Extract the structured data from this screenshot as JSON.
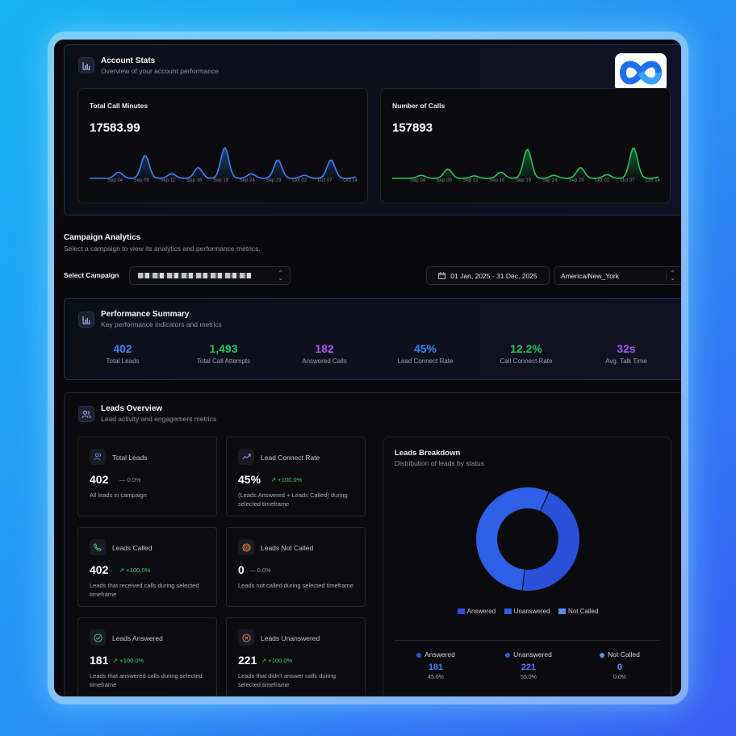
{
  "account_stats": {
    "title": "Account Stats",
    "subtitle": "Overview of your account performance",
    "call_minutes": {
      "title": "Total Call Minutes",
      "value": "17583.99",
      "color": "#3b82f6",
      "ticks": [
        "Sep 04",
        "Sep 09",
        "Sep 12",
        "Sep 16",
        "Sep 19",
        "Sep 24",
        "Sep 29",
        "Oct 02",
        "Oct 07",
        "Oct 14"
      ]
    },
    "number_of_calls": {
      "title": "Number of Calls",
      "value": "157893",
      "color": "#22c55e",
      "ticks": [
        "Sep 04",
        "Sep 09",
        "Sep 12",
        "Sep 16",
        "Sep 19",
        "Sep 24",
        "Sep 29",
        "Oct 02",
        "Oct 07",
        "Oct 14"
      ]
    }
  },
  "campaign_analytics": {
    "title": "Campaign Analytics",
    "subtitle": "Select a campaign to view its analytics and performance metrics.",
    "select_label": "Select Campaign",
    "date_range": "01 Jan, 2025 - 31 Dec, 2025",
    "timezone": "America/New_York"
  },
  "performance_summary": {
    "title": "Performance Summary",
    "subtitle": "Key performance indicators and metrics",
    "metrics": [
      {
        "value": "402",
        "label": "Total Leads",
        "color": "#3b82f6"
      },
      {
        "value": "1,493",
        "label": "Total Call Attempts",
        "color": "#22c55e"
      },
      {
        "value": "182",
        "label": "Answered Calls",
        "color": "#a855f7"
      },
      {
        "value": "45%",
        "label": "Lead Connect Rate",
        "color": "#3b82f6"
      },
      {
        "value": "12.2%",
        "label": "Call Connect Rate",
        "color": "#22c55e"
      },
      {
        "value": "32s",
        "label": "Avg. Talk Time",
        "color": "#a855f7"
      }
    ]
  },
  "leads_overview": {
    "title": "Leads Overview",
    "subtitle": "Lead activity and engagement metrics",
    "cards": [
      {
        "title": "Total Leads",
        "value": "402",
        "change": "0.0%",
        "trend": "flat",
        "desc": "All leads in campaign"
      },
      {
        "title": "Lead Connect Rate",
        "value": "45%",
        "change": "+100.0%",
        "trend": "up",
        "desc": "(Leads Answered + Leads Called) during selected timeframe"
      },
      {
        "title": "Leads Called",
        "value": "402",
        "change": "+100.0%",
        "trend": "up",
        "desc": "Leads that received calls during selected timeframe"
      },
      {
        "title": "Leads Not Called",
        "value": "0",
        "change": "0.0%",
        "trend": "flat",
        "desc": "Leads not called during selected timeframe"
      },
      {
        "title": "Leads Answered",
        "value": "181",
        "change": "+100.0%",
        "trend": "up",
        "desc": "Leads that answered calls during selected timeframe"
      },
      {
        "title": "Leads Unanswered",
        "value": "221",
        "change": "+100.0%",
        "trend": "up",
        "desc": "Leads that didn't answer calls during selected timeframe"
      }
    ]
  },
  "leads_breakdown": {
    "title": "Leads Breakdown",
    "subtitle": "Distribution of leads by status",
    "legend": [
      "Answered",
      "Unanswered",
      "Not Called"
    ],
    "items": [
      {
        "name": "Answered",
        "value": "181",
        "pct": "45.0%",
        "color": "#2a4fd8"
      },
      {
        "name": "Unanswered",
        "value": "221",
        "pct": "55.0%",
        "color": "#2f5fe6"
      },
      {
        "name": "Not Called",
        "value": "0",
        "pct": "0.0%",
        "color": "#5b8df7"
      }
    ]
  },
  "chart_data": [
    {
      "type": "area",
      "title": "Total Call Minutes",
      "x": [
        "Sep 04",
        "Sep 09",
        "Sep 12",
        "Sep 16",
        "Sep 19",
        "Sep 24",
        "Sep 29",
        "Oct 02",
        "Oct 07",
        "Oct 14"
      ],
      "values": [
        0.2,
        0.75,
        0.15,
        0.35,
        1.0,
        0.15,
        0.6,
        0.1,
        0.6,
        0.05
      ]
    },
    {
      "type": "area",
      "title": "Number of Calls",
      "x": [
        "Sep 04",
        "Sep 09",
        "Sep 12",
        "Sep 16",
        "Sep 19",
        "Sep 24",
        "Sep 29",
        "Oct 02",
        "Oct 07",
        "Oct 14"
      ],
      "values": [
        0.1,
        0.3,
        0.08,
        0.2,
        0.95,
        0.1,
        0.35,
        0.12,
        1.0,
        0.05
      ]
    },
    {
      "type": "pie",
      "title": "Leads Breakdown",
      "categories": [
        "Answered",
        "Unanswered",
        "Not Called"
      ],
      "values": [
        181,
        221,
        0
      ]
    }
  ]
}
